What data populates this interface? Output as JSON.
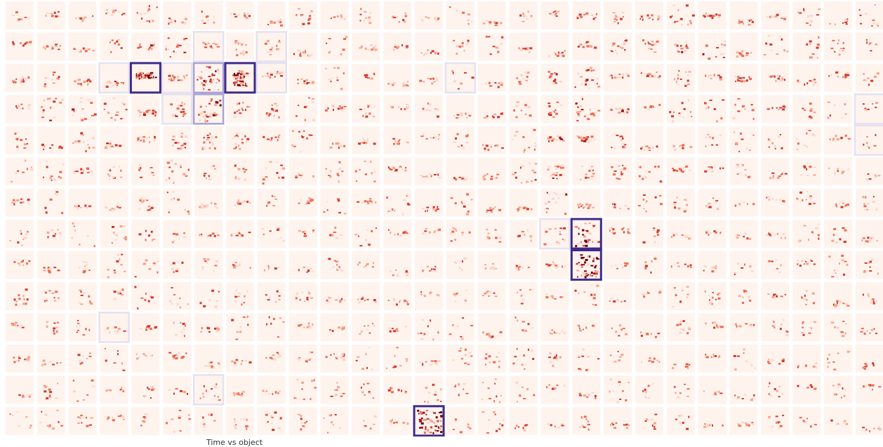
{
  "figure": {
    "grid": {
      "rows": 14,
      "cols": 28
    },
    "background_cell_color": "#fff3ee",
    "mark_colors": [
      "#fbd4c4",
      "#f6a38a",
      "#ee6a4f",
      "#d6352b",
      "#a50f15",
      "#67000d"
    ],
    "highlight_strong_color": "#3f2a8c",
    "highlight_medium_color": "#a9a3d4",
    "highlight_light_color": "#e4e2f1",
    "highlights": [
      {
        "row": 2,
        "col": 4,
        "level": "strong"
      },
      {
        "row": 2,
        "col": 7,
        "level": "strong"
      },
      {
        "row": 7,
        "col": 18,
        "level": "strong"
      },
      {
        "row": 8,
        "col": 18,
        "level": "strong"
      },
      {
        "row": 13,
        "col": 13,
        "level": "strong"
      },
      {
        "row": 3,
        "col": 6,
        "level": "medium"
      },
      {
        "row": 2,
        "col": 6,
        "level": "medium"
      },
      {
        "row": 1,
        "col": 6,
        "level": "light"
      },
      {
        "row": 1,
        "col": 8,
        "level": "light"
      },
      {
        "row": 2,
        "col": 3,
        "level": "light"
      },
      {
        "row": 2,
        "col": 5,
        "level": "light"
      },
      {
        "row": 2,
        "col": 8,
        "level": "light"
      },
      {
        "row": 2,
        "col": 14,
        "level": "light"
      },
      {
        "row": 3,
        "col": 5,
        "level": "light"
      },
      {
        "row": 3,
        "col": 27,
        "level": "light"
      },
      {
        "row": 4,
        "col": 27,
        "level": "light"
      },
      {
        "row": 7,
        "col": 17,
        "level": "light"
      },
      {
        "row": 10,
        "col": 3,
        "level": "light"
      },
      {
        "row": 12,
        "col": 6,
        "level": "light"
      }
    ],
    "axis_label": "Time vs object"
  }
}
